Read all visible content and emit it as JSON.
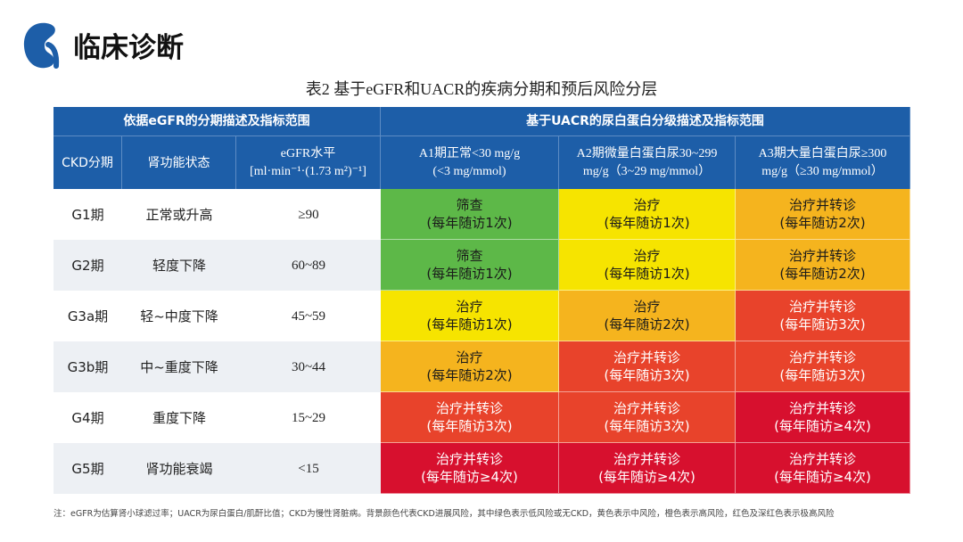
{
  "header": {
    "title": "临床诊断"
  },
  "table": {
    "caption": "表2 基于eGFR和UACR的疾病分期和预后风险分层",
    "group_headers": [
      "依据eGFR的分期描述及指标范围",
      "基于UACR的尿白蛋白分级描述及指标范围"
    ],
    "columns": [
      [
        "CKD分期"
      ],
      [
        "肾功能状态"
      ],
      [
        "eGFR水平",
        "[ml·min⁻¹·(1.73 m²)⁻¹]"
      ],
      [
        "A1期正常<30 mg/g",
        "(<3 mg/mmol)"
      ],
      [
        "A2期微量白蛋白尿30~299",
        "mg/g（3~29 mg/mmol）"
      ],
      [
        "A3期大量白蛋白尿≥300",
        "mg/g（≥30 mg/mmol）"
      ]
    ],
    "rows": [
      {
        "stage": "G1期",
        "status": "正常或升高",
        "egfr": "≥90",
        "cells": [
          {
            "lines": [
              "筛查",
              "(每年随访1次)"
            ],
            "color": "#5db848",
            "text_color": "#1a1a1a"
          },
          {
            "lines": [
              "治疗",
              "(每年随访1次)"
            ],
            "color": "#f6e400",
            "text_color": "#1a1a1a"
          },
          {
            "lines": [
              "治疗并转诊",
              "(每年随访2次)"
            ],
            "color": "#f5b41e",
            "text_color": "#1a1a1a"
          }
        ]
      },
      {
        "stage": "G2期",
        "status": "轻度下降",
        "egfr": "60~89",
        "cells": [
          {
            "lines": [
              "筛查",
              "(每年随访1次)"
            ],
            "color": "#5db848",
            "text_color": "#1a1a1a"
          },
          {
            "lines": [
              "治疗",
              "(每年随访1次)"
            ],
            "color": "#f6e400",
            "text_color": "#1a1a1a"
          },
          {
            "lines": [
              "治疗并转诊",
              "(每年随访2次)"
            ],
            "color": "#f5b41e",
            "text_color": "#1a1a1a"
          }
        ]
      },
      {
        "stage": "G3a期",
        "status": "轻~中度下降",
        "egfr": "45~59",
        "cells": [
          {
            "lines": [
              "治疗",
              "(每年随访1次)"
            ],
            "color": "#f6e400",
            "text_color": "#1a1a1a"
          },
          {
            "lines": [
              "治疗",
              "(每年随访2次)"
            ],
            "color": "#f5b41e",
            "text_color": "#1a1a1a"
          },
          {
            "lines": [
              "治疗并转诊",
              "(每年随访3次)"
            ],
            "color": "#e8432b",
            "text_color": "#ffffff"
          }
        ]
      },
      {
        "stage": "G3b期",
        "status": "中~重度下降",
        "egfr": "30~44",
        "cells": [
          {
            "lines": [
              "治疗",
              "(每年随访2次)"
            ],
            "color": "#f5b41e",
            "text_color": "#1a1a1a"
          },
          {
            "lines": [
              "治疗并转诊",
              "(每年随访3次)"
            ],
            "color": "#e8432b",
            "text_color": "#ffffff"
          },
          {
            "lines": [
              "治疗并转诊",
              "(每年随访3次)"
            ],
            "color": "#e8432b",
            "text_color": "#ffffff"
          }
        ]
      },
      {
        "stage": "G4期",
        "status": "重度下降",
        "egfr": "15~29",
        "cells": [
          {
            "lines": [
              "治疗并转诊",
              "(每年随访3次)"
            ],
            "color": "#e8432b",
            "text_color": "#ffffff"
          },
          {
            "lines": [
              "治疗并转诊",
              "(每年随访3次)"
            ],
            "color": "#e8432b",
            "text_color": "#ffffff"
          },
          {
            "lines": [
              "治疗并转诊",
              "(每年随访≥4次)"
            ],
            "color": "#d7102e",
            "text_color": "#ffffff"
          }
        ]
      },
      {
        "stage": "G5期",
        "status": "肾功能衰竭",
        "egfr": "<15",
        "cells": [
          {
            "lines": [
              "治疗并转诊",
              "(每年随访≥4次)"
            ],
            "color": "#d7102e",
            "text_color": "#ffffff"
          },
          {
            "lines": [
              "治疗并转诊",
              "(每年随访≥4次)"
            ],
            "color": "#d7102e",
            "text_color": "#ffffff"
          },
          {
            "lines": [
              "治疗并转诊",
              "(每年随访≥4次)"
            ],
            "color": "#d7102e",
            "text_color": "#ffffff"
          }
        ]
      }
    ],
    "note": "注：eGFR为估算肾小球滤过率；UACR为尿白蛋白/肌酐比值；CKD为慢性肾脏病。背景颜色代表CKD进展风险，其中绿色表示低风险或无CKD，黄色表示中风险，橙色表示高风险，红色及深红色表示极高风险"
  }
}
